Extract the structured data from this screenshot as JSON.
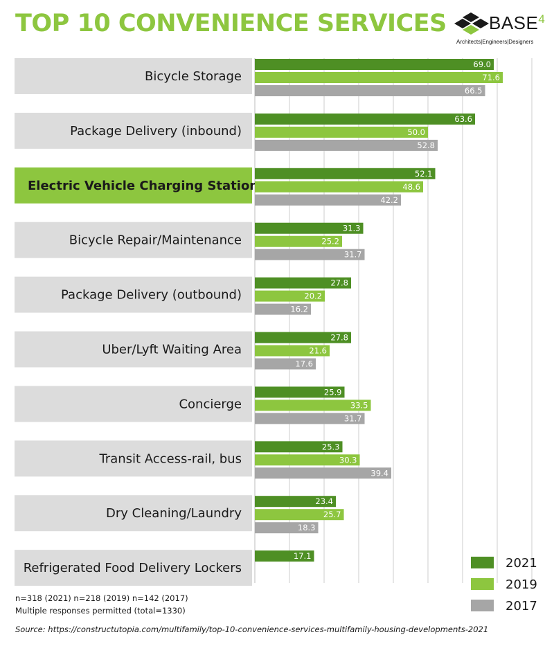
{
  "header": {
    "title": "TOP 10 CONVENIENCE SERVICES",
    "logo_text": "BASE",
    "logo_number": "4",
    "logo_tagline": "Architects|Engineers|Designers"
  },
  "chart_data": {
    "type": "bar",
    "orientation": "horizontal",
    "title": "TOP 10 CONVENIENCE SERVICES",
    "categories": [
      "Bicycle Storage",
      "Package Delivery (inbound)",
      "Electric Vehicle Charging Station",
      "Bicycle Repair/Maintenance",
      "Package Delivery (outbound)",
      "Uber/Lyft Waiting Area",
      "Concierge",
      "Transit Access-rail, bus",
      "Dry Cleaning/Laundry",
      "Refrigerated Food Delivery Lockers"
    ],
    "highlighted_category": "Electric Vehicle Charging Station",
    "series": [
      {
        "name": "2021",
        "color": "#4e8f24",
        "values": [
          69.0,
          63.6,
          52.1,
          31.3,
          27.8,
          27.8,
          25.9,
          25.3,
          23.4,
          17.1
        ]
      },
      {
        "name": "2019",
        "color": "#8dc63f",
        "values": [
          71.6,
          50.0,
          48.6,
          25.2,
          20.2,
          21.6,
          33.5,
          30.3,
          25.7,
          null
        ]
      },
      {
        "name": "2017",
        "color": "#a6a6a6",
        "values": [
          66.5,
          52.8,
          42.2,
          31.7,
          16.2,
          17.6,
          31.7,
          39.4,
          18.3,
          null
        ]
      }
    ],
    "xlim": [
      0,
      85
    ],
    "grid": true,
    "legend_position": "bottom-right",
    "colors": {
      "label_box": "#dcdcdc",
      "label_box_highlight": "#8dc63f",
      "title": "#8dc63f",
      "gridline": "#cccccc"
    }
  },
  "footer": {
    "note1": "n=318 (2021) n=218 (2019) n=142 (2017)",
    "note2": "Multiple responses permitted (total=1330)",
    "source": "Source: https://constructutopia.com/multifamily/top-10-convenience-services-multifamily-housing-developments-2021"
  }
}
